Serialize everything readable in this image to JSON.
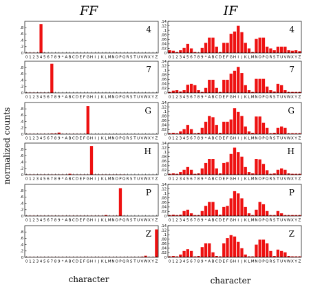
{
  "figure": {
    "column_titles": [
      "FF",
      "IF"
    ],
    "ylabel": "normalized counts",
    "xlabel": "character",
    "bar_color": "#ee1111"
  },
  "chart_data": {
    "type": "bar",
    "categories": [
      "0",
      "1",
      "2",
      "3",
      "4",
      "5",
      "6",
      "7",
      "8",
      "9",
      "*",
      "A",
      "B",
      "C",
      "D",
      "E",
      "F",
      "G",
      "H",
      "I",
      "J",
      "K",
      "L",
      "M",
      "N",
      "O",
      "P",
      "Q",
      "R",
      "S",
      "T",
      "U",
      "V",
      "W",
      "X",
      "Y",
      "Z"
    ],
    "panels": [
      {
        "column": "FF",
        "label": "4",
        "yticks": [
          0,
          0.2,
          0.4,
          0.6,
          0.8
        ],
        "ylim": [
          0,
          1.0
        ],
        "values": [
          0.01,
          0.01,
          0.01,
          0.01,
          0.91,
          0.01,
          0,
          0,
          0,
          0,
          0,
          0,
          0,
          0,
          0,
          0,
          0,
          0,
          0,
          0,
          0,
          0,
          0,
          0,
          0,
          0,
          0,
          0,
          0,
          0,
          0,
          0,
          0,
          0,
          0,
          0,
          0
        ]
      },
      {
        "column": "IF",
        "label": "4",
        "yticks": [
          0,
          0.02,
          0.04,
          0.06,
          0.08,
          0.1,
          0.12,
          0.14
        ],
        "ylim": [
          0,
          0.14
        ],
        "values": [
          0.012,
          0.01,
          0.004,
          0.012,
          0.022,
          0.04,
          0.02,
          0.004,
          0.002,
          0.022,
          0.045,
          0.068,
          0.068,
          0.028,
          0.004,
          0.045,
          0.045,
          0.085,
          0.095,
          0.12,
          0.092,
          0.045,
          0.02,
          0.004,
          0.062,
          0.068,
          0.068,
          0.028,
          0.02,
          0.012,
          0.028,
          0.028,
          0.028,
          0.012,
          0.01,
          0.012,
          0.008
        ]
      },
      {
        "column": "FF",
        "label": "7",
        "yticks": [
          0,
          0.2,
          0.4,
          0.6,
          0.8
        ],
        "ylim": [
          0,
          1.0
        ],
        "values": [
          0.01,
          0.01,
          0.01,
          0.01,
          0.01,
          0.01,
          0.01,
          0.92,
          0,
          0,
          0,
          0,
          0,
          0,
          0,
          0,
          0,
          0,
          0,
          0,
          0,
          0,
          0,
          0,
          0,
          0,
          0,
          0,
          0,
          0,
          0,
          0,
          0,
          0,
          0,
          0,
          0
        ]
      },
      {
        "column": "IF",
        "label": "7",
        "yticks": [
          0,
          0.02,
          0.04,
          0.06,
          0.08,
          0.1,
          0.12,
          0.14
        ],
        "ylim": [
          0,
          0.14
        ],
        "values": [
          0.004,
          0.01,
          0.012,
          0.006,
          0.012,
          0.036,
          0.04,
          0.034,
          0.012,
          0.004,
          0.022,
          0.058,
          0.058,
          0.022,
          0.004,
          0.058,
          0.058,
          0.085,
          0.098,
          0.115,
          0.088,
          0.034,
          0.012,
          0.004,
          0.062,
          0.062,
          0.062,
          0.028,
          0.012,
          0.006,
          0.04,
          0.034,
          0.012,
          0.004,
          0.004,
          0.004,
          0.004
        ]
      },
      {
        "column": "FF",
        "label": "G",
        "yticks": [
          0,
          0.2,
          0.4,
          0.6,
          0.8
        ],
        "ylim": [
          0,
          1.0
        ],
        "values": [
          0.01,
          0.01,
          0.01,
          0.01,
          0.01,
          0.01,
          0.01,
          0.02,
          0.02,
          0.05,
          0.01,
          0.01,
          0.01,
          0.01,
          0.01,
          0.01,
          0.01,
          0.89,
          0,
          0,
          0,
          0,
          0,
          0,
          0,
          0,
          0,
          0,
          0,
          0,
          0,
          0,
          0,
          0,
          0,
          0,
          0
        ]
      },
      {
        "column": "IF",
        "label": "G",
        "yticks": [
          0,
          0.02,
          0.04,
          0.06,
          0.08,
          0.1,
          0.12,
          0.14
        ],
        "ylim": [
          0,
          0.14
        ],
        "values": [
          0.004,
          0.006,
          0.004,
          0.012,
          0.022,
          0.04,
          0.022,
          0.004,
          0.006,
          0.028,
          0.055,
          0.08,
          0.075,
          0.04,
          0.006,
          0.055,
          0.055,
          0.065,
          0.115,
          0.098,
          0.08,
          0.034,
          0.012,
          0.006,
          0.078,
          0.078,
          0.05,
          0.028,
          0.004,
          0.006,
          0.028,
          0.034,
          0.028,
          0.004,
          0.004,
          0.004,
          0.004
        ]
      },
      {
        "column": "FF",
        "label": "H",
        "yticks": [
          0,
          0.2,
          0.4,
          0.6,
          0.8
        ],
        "ylim": [
          0,
          1.0
        ],
        "values": [
          0.01,
          0.01,
          0.01,
          0.01,
          0.01,
          0.01,
          0.01,
          0.01,
          0.01,
          0.01,
          0.01,
          0.01,
          0.03,
          0.01,
          0.01,
          0.01,
          0.01,
          0.01,
          0.91,
          0.01,
          0.01,
          0.01,
          0.01,
          0.01,
          0.01,
          0.01,
          0.01,
          0.01,
          0,
          0,
          0,
          0,
          0,
          0,
          0,
          0,
          0
        ]
      },
      {
        "column": "IF",
        "label": "H",
        "yticks": [
          0,
          0.02,
          0.04,
          0.06,
          0.08,
          0.1,
          0.12,
          0.14
        ],
        "ylim": [
          0,
          0.14
        ],
        "values": [
          0.004,
          0.006,
          0.004,
          0.012,
          0.022,
          0.034,
          0.022,
          0.004,
          0.006,
          0.028,
          0.052,
          0.07,
          0.07,
          0.028,
          0.006,
          0.052,
          0.056,
          0.092,
          0.12,
          0.1,
          0.08,
          0.034,
          0.012,
          0.006,
          0.07,
          0.068,
          0.048,
          0.02,
          0.004,
          0.006,
          0.022,
          0.028,
          0.022,
          0.006,
          0.004,
          0.004,
          0.004
        ]
      },
      {
        "column": "FF",
        "label": "P",
        "yticks": [
          0,
          0.2,
          0.4,
          0.6,
          0.8
        ],
        "ylim": [
          0,
          1.0
        ],
        "values": [
          0.01,
          0.01,
          0.01,
          0.01,
          0.01,
          0.01,
          0.01,
          0.01,
          0.01,
          0.01,
          0.01,
          0.01,
          0.01,
          0.01,
          0.01,
          0.01,
          0.01,
          0.01,
          0.01,
          0.01,
          0.01,
          0.01,
          0.03,
          0.01,
          0.01,
          0.01,
          0.88,
          0.01,
          0,
          0,
          0,
          0,
          0,
          0,
          0,
          0,
          0
        ]
      },
      {
        "column": "IF",
        "label": "P",
        "yticks": [
          0,
          0.02,
          0.04,
          0.06,
          0.08,
          0.1,
          0.12,
          0.14
        ],
        "ylim": [
          0,
          0.14
        ],
        "values": [
          0.004,
          0.006,
          0.004,
          0.006,
          0.022,
          0.028,
          0.012,
          0.004,
          0.004,
          0.022,
          0.045,
          0.062,
          0.062,
          0.028,
          0.006,
          0.04,
          0.045,
          0.078,
          0.11,
          0.1,
          0.078,
          0.04,
          0.012,
          0.004,
          0.028,
          0.062,
          0.052,
          0.022,
          0.004,
          0.004,
          0.022,
          0.012,
          0.004,
          0.004,
          0.004,
          0.004,
          0.004
        ]
      },
      {
        "column": "FF",
        "label": "Z",
        "yticks": [
          0,
          0.2,
          0.4,
          0.6,
          0.8
        ],
        "ylim": [
          0,
          1.0
        ],
        "values": [
          0.01,
          0.01,
          0.01,
          0.01,
          0.01,
          0.01,
          0.01,
          0.01,
          0.01,
          0.01,
          0.01,
          0.01,
          0.01,
          0.01,
          0.01,
          0.01,
          0.01,
          0.01,
          0.01,
          0.01,
          0.01,
          0.01,
          0.01,
          0.01,
          0.01,
          0.01,
          0.01,
          0.01,
          0.01,
          0.01,
          0.01,
          0.01,
          0.02,
          0.05,
          0.01,
          0.01,
          0.88
        ]
      },
      {
        "column": "IF",
        "label": "Z",
        "yticks": [
          0,
          0.02,
          0.04,
          0.06,
          0.08,
          0.1,
          0.12,
          0.14
        ],
        "ylim": [
          0,
          0.14
        ],
        "values": [
          0.004,
          0.006,
          0.004,
          0.012,
          0.028,
          0.036,
          0.028,
          0.004,
          0.006,
          0.045,
          0.062,
          0.062,
          0.022,
          0.006,
          0.004,
          0.062,
          0.085,
          0.098,
          0.092,
          0.068,
          0.04,
          0.012,
          0.004,
          0.004,
          0.056,
          0.078,
          0.078,
          0.062,
          0.028,
          0.006,
          0.034,
          0.028,
          0.022,
          0.006,
          0.004,
          0.004,
          0.004
        ]
      }
    ]
  }
}
